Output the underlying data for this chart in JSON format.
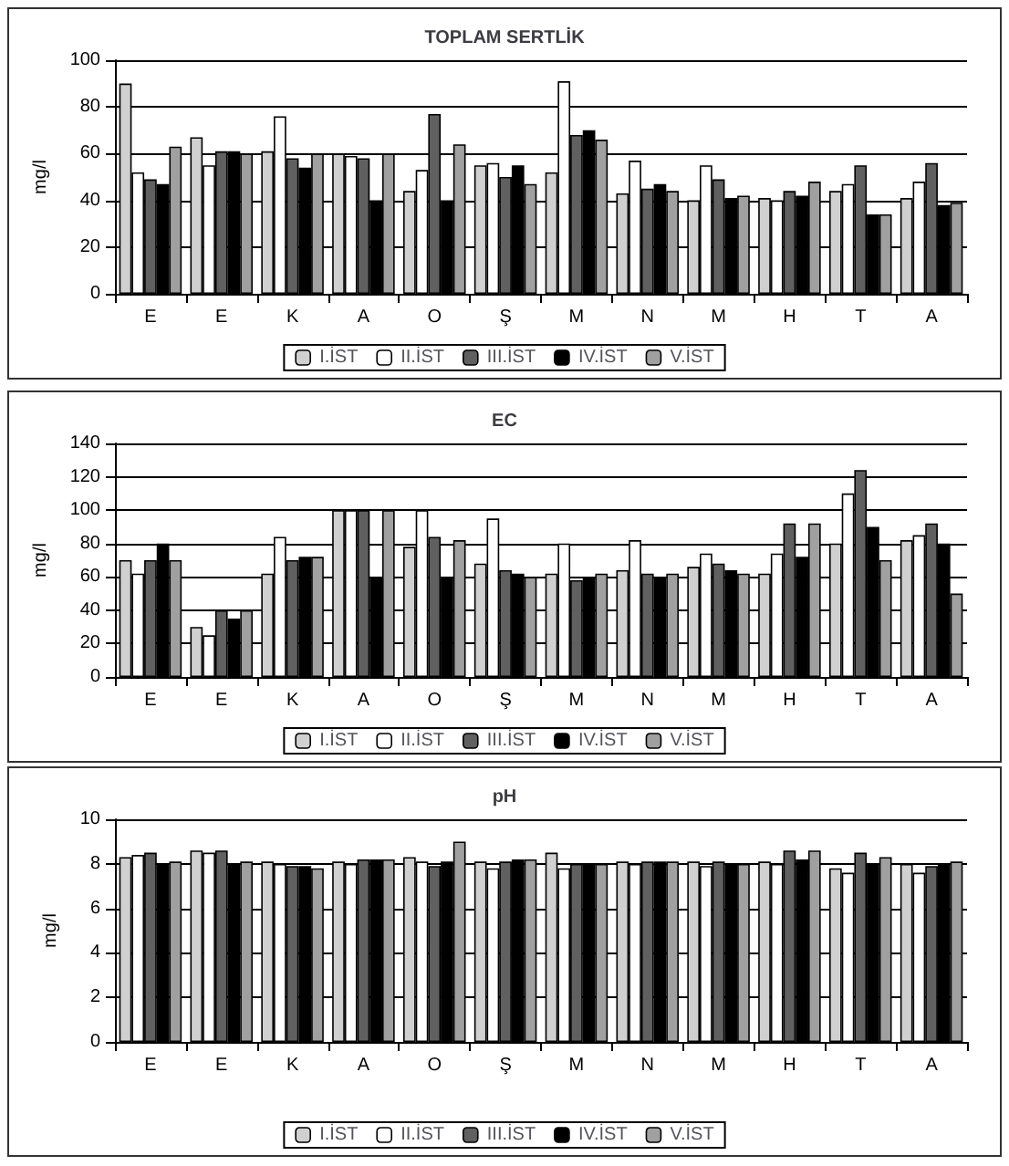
{
  "chart_data": [
    {
      "type": "bar",
      "title": "TOPLAM SERTLİK",
      "ylabel": "mg/l",
      "categories": [
        "E",
        "E",
        "K",
        "A",
        "O",
        "Ş",
        "M",
        "N",
        "M",
        "H",
        "T",
        "A"
      ],
      "ylim": [
        0,
        100
      ],
      "yticks": [
        0,
        20,
        40,
        60,
        80,
        100
      ],
      "grid": "y",
      "legend": "bottom",
      "series": [
        {
          "name": "I.İST",
          "color": "#d0d0d0",
          "values": [
            90,
            67,
            61,
            60,
            44,
            55,
            52,
            43,
            40,
            41,
            44,
            41
          ]
        },
        {
          "name": "II.İST",
          "color": "#ffffff",
          "values": [
            52,
            55,
            76,
            59,
            53,
            56,
            91,
            57,
            55,
            40,
            47,
            48
          ]
        },
        {
          "name": "III.İST",
          "color": "#606060",
          "values": [
            49,
            61,
            58,
            58,
            77,
            50,
            68,
            45,
            49,
            44,
            55,
            56
          ]
        },
        {
          "name": "IV.İST",
          "color": "#000000",
          "values": [
            47,
            61,
            54,
            40,
            40,
            55,
            70,
            47,
            41,
            42,
            34,
            38
          ]
        },
        {
          "name": "V.İST",
          "color": "#a0a0a0",
          "values": [
            63,
            60,
            60,
            60,
            64,
            47,
            66,
            44,
            42,
            48,
            34,
            39
          ]
        }
      ]
    },
    {
      "type": "bar",
      "title": "EC",
      "ylabel": "mg/l",
      "categories": [
        "E",
        "E",
        "K",
        "A",
        "O",
        "Ş",
        "M",
        "N",
        "M",
        "H",
        "T",
        "A"
      ],
      "ylim": [
        0,
        140
      ],
      "yticks": [
        0,
        20,
        40,
        60,
        80,
        100,
        120,
        140
      ],
      "grid": "y",
      "legend": "bottom",
      "series": [
        {
          "name": "I.İST",
          "color": "#d0d0d0",
          "values": [
            70,
            30,
            62,
            100,
            78,
            68,
            62,
            64,
            66,
            62,
            80,
            82
          ]
        },
        {
          "name": "II.İST",
          "color": "#ffffff",
          "values": [
            62,
            25,
            84,
            100,
            100,
            95,
            80,
            82,
            74,
            74,
            110,
            85
          ]
        },
        {
          "name": "III.İST",
          "color": "#606060",
          "values": [
            70,
            40,
            70,
            100,
            84,
            64,
            58,
            62,
            68,
            92,
            124,
            92
          ]
        },
        {
          "name": "IV.İST",
          "color": "#000000",
          "values": [
            80,
            35,
            72,
            60,
            60,
            62,
            60,
            60,
            64,
            72,
            90,
            80
          ]
        },
        {
          "name": "V.İST",
          "color": "#a0a0a0",
          "values": [
            70,
            40,
            72,
            100,
            82,
            60,
            62,
            62,
            62,
            92,
            70,
            50
          ]
        }
      ]
    },
    {
      "type": "bar",
      "title": "pH",
      "ylabel": "mg/l",
      "categories": [
        "E",
        "E",
        "K",
        "A",
        "O",
        "Ş",
        "M",
        "N",
        "M",
        "H",
        "T",
        "A"
      ],
      "ylim": [
        0,
        10
      ],
      "yticks": [
        0,
        2,
        4,
        6,
        8,
        10
      ],
      "grid": "y",
      "legend": "bottom",
      "series": [
        {
          "name": "I.İST",
          "color": "#d0d0d0",
          "values": [
            8.3,
            8.6,
            8.1,
            8.1,
            8.3,
            8.1,
            8.5,
            8.1,
            8.1,
            8.1,
            7.8,
            8.0
          ]
        },
        {
          "name": "II.İST",
          "color": "#ffffff",
          "values": [
            8.4,
            8.5,
            8.0,
            8.0,
            8.1,
            7.8,
            7.8,
            8.0,
            7.9,
            8.0,
            7.6,
            7.6
          ]
        },
        {
          "name": "III.İST",
          "color": "#606060",
          "values": [
            8.5,
            8.6,
            7.9,
            8.2,
            7.9,
            8.1,
            8.0,
            8.1,
            8.1,
            8.6,
            8.5,
            7.9
          ]
        },
        {
          "name": "IV.İST",
          "color": "#000000",
          "values": [
            8.0,
            8.0,
            7.9,
            8.2,
            8.1,
            8.2,
            8.0,
            8.1,
            8.0,
            8.2,
            8.0,
            8.0
          ]
        },
        {
          "name": "V.İST",
          "color": "#a0a0a0",
          "values": [
            8.1,
            8.1,
            7.8,
            8.2,
            9.0,
            8.2,
            8.0,
            8.1,
            8.0,
            8.6,
            8.3,
            8.1
          ]
        }
      ]
    }
  ]
}
